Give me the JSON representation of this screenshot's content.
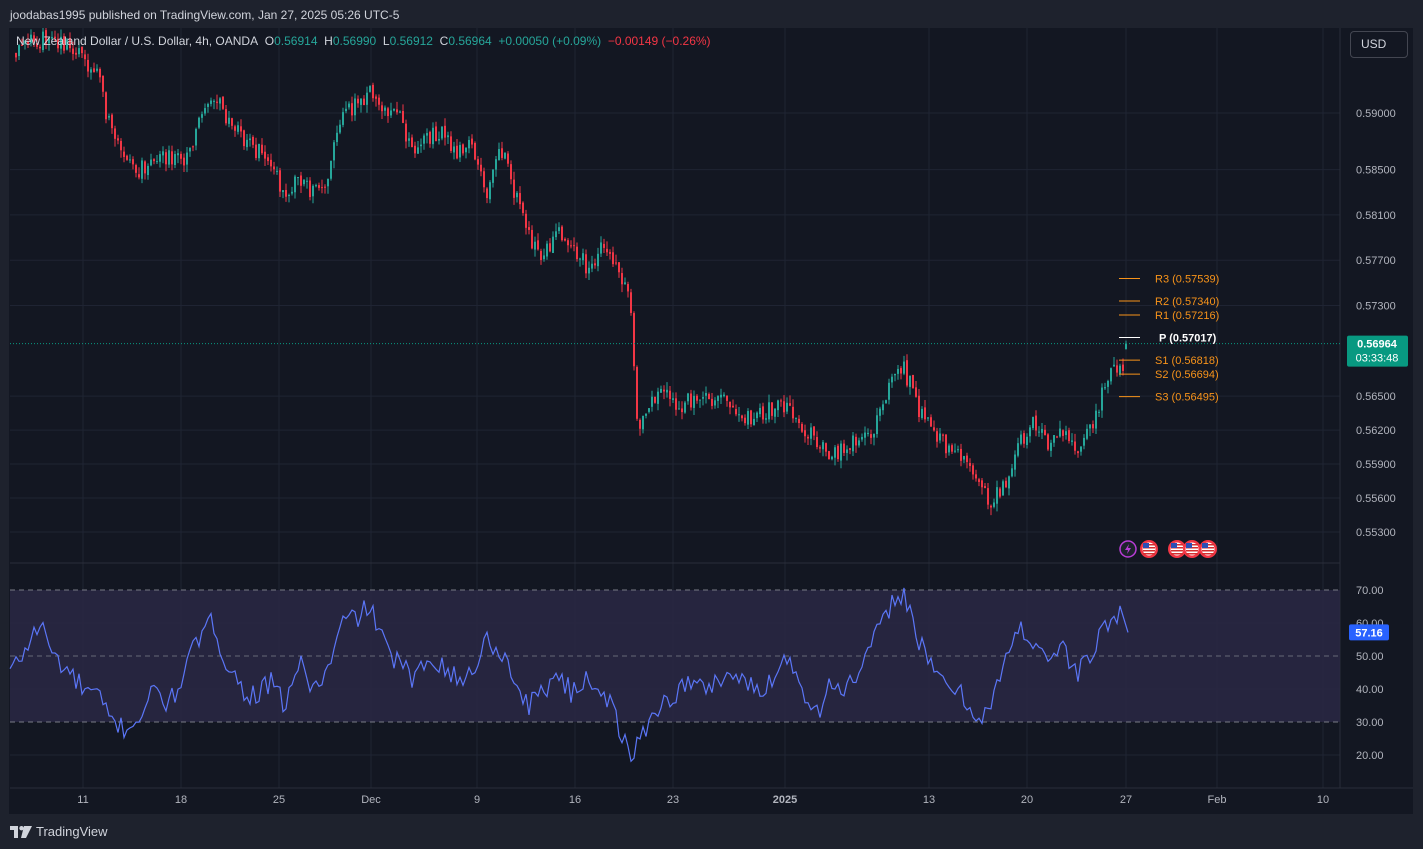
{
  "header": {
    "publisher": "joodabas1995 published on TradingView.com, Jan 27, 2025 05:26 UTC-5"
  },
  "legend": {
    "symbol": "New Zealand Dollar / U.S. Dollar, 4h, OANDA",
    "open_label": "O",
    "open": "0.56914",
    "high_label": "H",
    "high": "0.56990",
    "low_label": "L",
    "low": "0.56912",
    "close_label": "C",
    "close": "0.56964",
    "change": "+0.00050 (+0.09%)",
    "change2": "−0.00149 (−0.26%)"
  },
  "currency": "USD",
  "brand": "TradingView",
  "colors": {
    "up": "#26a69a",
    "down": "#f23645",
    "pivot_levels": "#f7931a",
    "pivot_p": "#ffffff",
    "rsi_line": "#5b76f7",
    "rsi_band": "#2a2844",
    "price_label": "#089981",
    "rsi_label": "#2962ff"
  },
  "chart_data": [
    {
      "type": "candlestick",
      "title": "New Zealand Dollar / U.S. Dollar, 4h, OANDA",
      "y_ticks": [
        "0.59000",
        "0.58500",
        "0.58100",
        "0.57700",
        "0.57300",
        "0.56500",
        "0.56200",
        "0.55900",
        "0.55600",
        "0.55300"
      ],
      "x_ticks": [
        "11",
        "18",
        "25",
        "Dec",
        "9",
        "16",
        "23",
        "2025",
        "13",
        "20",
        "27",
        "Feb",
        "10"
      ],
      "last_price": "0.56964",
      "countdown": "03:33:48",
      "path": [
        [
          "11/05",
          0.596
        ],
        [
          "11/06",
          0.5955
        ],
        [
          "11/08",
          0.5965
        ],
        [
          "11/10",
          0.596
        ],
        [
          "11/12",
          0.5935
        ],
        [
          "11/13",
          0.588
        ],
        [
          "11/14",
          0.586
        ],
        [
          "11/15",
          0.585
        ],
        [
          "11/16",
          0.5865
        ],
        [
          "11/17",
          0.586
        ],
        [
          "11/18",
          0.5855
        ],
        [
          "11/19",
          0.589
        ],
        [
          "11/20",
          0.592
        ],
        [
          "11/21",
          0.5895
        ],
        [
          "11/22",
          0.588
        ],
        [
          "11/24",
          0.5855
        ],
        [
          "11/25",
          0.583
        ],
        [
          "11/26",
          0.5845
        ],
        [
          "11/27",
          0.583
        ],
        [
          "11/28",
          0.5845
        ],
        [
          "11/29",
          0.5905
        ],
        [
          "11/30",
          0.5905
        ],
        [
          "12/01",
          0.592
        ],
        [
          "12/02",
          0.5905
        ],
        [
          "12/03",
          0.5895
        ],
        [
          "12/04",
          0.586
        ],
        [
          "12/05",
          0.588
        ],
        [
          "12/06",
          0.588
        ],
        [
          "12/07",
          0.5865
        ],
        [
          "12/08",
          0.587
        ],
        [
          "12/09",
          0.5825
        ],
        [
          "12/10",
          0.587
        ],
        [
          "12/11",
          0.583
        ],
        [
          "12/12",
          0.579
        ],
        [
          "12/13",
          0.577
        ],
        [
          "12/14",
          0.58
        ],
        [
          "12/15",
          0.578
        ],
        [
          "12/16",
          0.5765
        ],
        [
          "12/17",
          0.578
        ],
        [
          "12/18",
          0.576
        ],
        [
          "12/19",
          0.5735
        ],
        [
          "12/19b",
          0.563
        ],
        [
          "12/20",
          0.5625
        ],
        [
          "12/21",
          0.566
        ],
        [
          "12/22",
          0.564
        ],
        [
          "12/24",
          0.565
        ],
        [
          "12/26",
          0.5645
        ],
        [
          "12/27",
          0.563
        ],
        [
          "12/29",
          0.564
        ],
        [
          "12/30",
          0.5645
        ],
        [
          "12/31",
          0.562
        ],
        [
          "01/01",
          0.561
        ],
        [
          "01/02",
          0.56
        ],
        [
          "01/03",
          0.5605
        ],
        [
          "01/05",
          0.562
        ],
        [
          "01/06",
          0.566
        ],
        [
          "01/07",
          0.5675
        ],
        [
          "01/08",
          0.564
        ],
        [
          "01/09",
          0.562
        ],
        [
          "01/10",
          0.5605
        ],
        [
          "01/11",
          0.56
        ],
        [
          "01/12",
          0.5575
        ],
        [
          "01/13",
          0.5555
        ],
        [
          "01/14",
          0.557
        ],
        [
          "01/15",
          0.561
        ],
        [
          "01/16",
          0.5625
        ],
        [
          "01/17",
          0.5605
        ],
        [
          "01/18",
          0.5615
        ],
        [
          "01/19",
          0.56
        ],
        [
          "01/20",
          0.562
        ],
        [
          "01/21",
          0.566
        ],
        [
          "01/22",
          0.568
        ],
        [
          "01/23",
          0.5665
        ],
        [
          "01/24",
          0.567
        ],
        [
          "01/25",
          0.571
        ],
        [
          "01/26",
          0.5705
        ],
        [
          "01/27",
          0.56964
        ]
      ],
      "pivot_points": [
        {
          "label": "R3",
          "value": "0.57539"
        },
        {
          "label": "R2",
          "value": "0.57340"
        },
        {
          "label": "R1",
          "value": "0.57216"
        },
        {
          "label": "P",
          "value": "0.57017"
        },
        {
          "label": "S1",
          "value": "0.56818"
        },
        {
          "label": "S2",
          "value": "0.56694"
        },
        {
          "label": "S3",
          "value": "0.56495"
        }
      ],
      "event_icons": [
        "lightning-icon",
        "us-flag-icon",
        "us-flag-icon",
        "us-flag-icon",
        "us-flag-icon"
      ]
    },
    {
      "type": "line",
      "title": "RSI",
      "y_ticks": [
        "70.00",
        "60.00",
        "50.00",
        "40.00",
        "30.00",
        "20.00"
      ],
      "band": [
        30,
        70
      ],
      "mid": 50,
      "ylim": [
        14,
        78
      ],
      "last_value": "57.16",
      "path": [
        [
          "11/05",
          58
        ],
        [
          "11/06",
          45
        ],
        [
          "11/07",
          52
        ],
        [
          "11/08",
          60
        ],
        [
          "11/09",
          50
        ],
        [
          "11/10",
          45
        ],
        [
          "11/11",
          40
        ],
        [
          "11/12",
          38
        ],
        [
          "11/13",
          30
        ],
        [
          "11/14",
          28
        ],
        [
          "11/15",
          32
        ],
        [
          "11/16",
          40
        ],
        [
          "11/17",
          35
        ],
        [
          "11/18",
          45
        ],
        [
          "11/19",
          55
        ],
        [
          "11/20",
          60
        ],
        [
          "11/21",
          48
        ],
        [
          "11/22",
          40
        ],
        [
          "11/23",
          38
        ],
        [
          "11/24",
          42
        ],
        [
          "11/25",
          35
        ],
        [
          "11/26",
          48
        ],
        [
          "11/27",
          40
        ],
        [
          "11/28",
          45
        ],
        [
          "11/29",
          60
        ],
        [
          "11/30",
          62
        ],
        [
          "12/01",
          65
        ],
        [
          "12/02",
          52
        ],
        [
          "12/03",
          48
        ],
        [
          "12/04",
          42
        ],
        [
          "12/05",
          50
        ],
        [
          "12/06",
          48
        ],
        [
          "12/07",
          42
        ],
        [
          "12/08",
          45
        ],
        [
          "12/09",
          55
        ],
        [
          "12/10",
          52
        ],
        [
          "12/11",
          42
        ],
        [
          "12/12",
          35
        ],
        [
          "12/13",
          40
        ],
        [
          "12/14",
          45
        ],
        [
          "12/15",
          38
        ],
        [
          "12/16",
          44
        ],
        [
          "12/17",
          40
        ],
        [
          "12/18",
          32
        ],
        [
          "12/19",
          18
        ],
        [
          "12/20",
          28
        ],
        [
          "12/21",
          35
        ],
        [
          "12/22",
          38
        ],
        [
          "12/23",
          42
        ],
        [
          "12/24",
          40
        ],
        [
          "12/26",
          45
        ],
        [
          "12/27",
          42
        ],
        [
          "12/28",
          38
        ],
        [
          "12/29",
          45
        ],
        [
          "12/30",
          50
        ],
        [
          "12/31",
          40
        ],
        [
          "01/01",
          33
        ],
        [
          "01/02",
          42
        ],
        [
          "01/03",
          40
        ],
        [
          "01/04",
          45
        ],
        [
          "01/05",
          55
        ],
        [
          "01/06",
          65
        ],
        [
          "01/07",
          70
        ],
        [
          "01/08",
          55
        ],
        [
          "01/09",
          45
        ],
        [
          "01/10",
          42
        ],
        [
          "01/11",
          38
        ],
        [
          "01/12",
          32
        ],
        [
          "01/13",
          34
        ],
        [
          "01/14",
          48
        ],
        [
          "01/15",
          58
        ],
        [
          "01/16",
          55
        ],
        [
          "01/17",
          50
        ],
        [
          "01/18",
          52
        ],
        [
          "01/19",
          45
        ],
        [
          "01/20",
          50
        ],
        [
          "01/21",
          60
        ],
        [
          "01/22",
          62
        ],
        [
          "01/23",
          55
        ],
        [
          "01/24",
          58
        ],
        [
          "01/25",
          68
        ],
        [
          "01/26",
          55
        ],
        [
          "01/27",
          57.16
        ]
      ]
    }
  ]
}
